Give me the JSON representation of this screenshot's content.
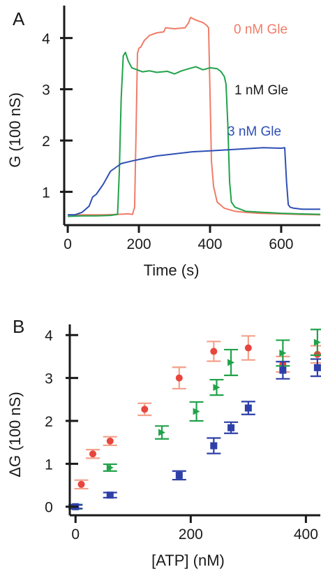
{
  "chart_data": [
    {
      "panel": "A",
      "type": "line",
      "xlabel": "Time (s)",
      "ylabel": "G (100 nS)",
      "xlim": [
        -10,
        710
      ],
      "ylim": [
        0.35,
        4.55
      ],
      "x_ticks": [
        "0",
        "200",
        "400",
        "600"
      ],
      "y_ticks": [
        "1",
        "2",
        "3",
        "4"
      ],
      "series": [
        {
          "name": "0 nM Gle",
          "color": "#f07c68",
          "x": [
            0,
            60,
            100,
            140,
            170,
            182,
            188,
            192,
            196,
            200,
            205,
            215,
            230,
            250,
            270,
            275,
            300,
            330,
            340,
            345,
            360,
            380,
            390,
            396,
            400,
            404,
            410,
            420,
            440,
            470,
            500,
            540,
            600,
            650,
            710
          ],
          "y": [
            0.55,
            0.55,
            0.55,
            0.56,
            0.57,
            0.56,
            0.7,
            2.2,
            3.7,
            3.8,
            3.82,
            3.95,
            4.05,
            4.1,
            4.12,
            4.2,
            4.18,
            4.2,
            4.3,
            4.4,
            4.35,
            4.3,
            4.25,
            4.2,
            2.9,
            1.6,
            1.1,
            0.8,
            0.68,
            0.62,
            0.6,
            0.58,
            0.57,
            0.56,
            0.55
          ]
        },
        {
          "name": "1 nM Gle",
          "color": "#21a24a",
          "x": [
            0,
            40,
            80,
            120,
            140,
            145,
            150,
            156,
            162,
            170,
            180,
            195,
            210,
            230,
            250,
            280,
            300,
            320,
            340,
            360,
            380,
            400,
            420,
            430,
            440,
            445,
            450,
            455,
            460,
            470,
            500,
            550,
            600,
            650,
            710
          ],
          "y": [
            0.52,
            0.53,
            0.53,
            0.54,
            0.56,
            1.4,
            2.8,
            3.65,
            3.72,
            3.55,
            3.42,
            3.38,
            3.34,
            3.36,
            3.33,
            3.35,
            3.3,
            3.36,
            3.4,
            3.44,
            3.38,
            3.42,
            3.4,
            3.35,
            3.25,
            3.1,
            2.3,
            1.2,
            0.8,
            0.7,
            0.62,
            0.6,
            0.58,
            0.57,
            0.56
          ]
        },
        {
          "name": "3 nM Gle",
          "color": "#2e4fb5",
          "x": [
            0,
            20,
            40,
            60,
            70,
            80,
            100,
            120,
            150,
            180,
            200,
            250,
            300,
            350,
            400,
            450,
            500,
            550,
            600,
            610,
            615,
            620,
            625,
            635,
            660,
            710
          ],
          "y": [
            0.55,
            0.55,
            0.6,
            0.72,
            0.9,
            0.95,
            1.15,
            1.4,
            1.55,
            1.6,
            1.63,
            1.7,
            1.74,
            1.78,
            1.8,
            1.82,
            1.84,
            1.86,
            1.85,
            1.86,
            1.2,
            0.75,
            0.7,
            0.68,
            0.66,
            0.66
          ]
        }
      ]
    },
    {
      "panel": "B",
      "type": "scatter",
      "xlabel": "[ATP] (nM)",
      "ylabel": "ΔG (100 nS)",
      "xlim": [
        -10,
        425
      ],
      "ylim": [
        -0.2,
        4.15
      ],
      "x_ticks": [
        "0",
        "200",
        "400"
      ],
      "y_ticks": [
        "0",
        "1",
        "2",
        "3",
        "4"
      ],
      "series": [
        {
          "name": "0 nM Gle",
          "color": "#e8453c",
          "bar_color": "#f4a08a",
          "marker": "circle",
          "x": [
            0,
            10,
            30,
            60,
            120,
            180,
            240,
            300,
            360,
            420
          ],
          "y": [
            0.0,
            0.52,
            1.23,
            1.53,
            2.27,
            3.0,
            3.62,
            3.7,
            3.32,
            3.55
          ],
          "err": [
            0.05,
            0.1,
            0.1,
            0.1,
            0.14,
            0.25,
            0.23,
            0.28,
            0.18,
            0.2
          ]
        },
        {
          "name": "1 nM Gle",
          "color": "#21a24a",
          "bar_color": "#21a24a",
          "marker": "bowtie",
          "x": [
            0,
            60,
            150,
            210,
            245,
            270,
            360,
            420
          ],
          "y": [
            0.0,
            0.91,
            1.73,
            2.22,
            2.78,
            3.36,
            3.58,
            3.83
          ],
          "err": [
            0.05,
            0.08,
            0.15,
            0.22,
            0.18,
            0.3,
            0.3,
            0.3
          ]
        },
        {
          "name": "3 nM Gle",
          "color": "#2e3fa8",
          "bar_color": "#2e3fa8",
          "marker": "square",
          "x": [
            0,
            60,
            180,
            240,
            270,
            300,
            360,
            420
          ],
          "y": [
            0.0,
            0.27,
            0.73,
            1.42,
            1.84,
            2.3,
            3.18,
            3.24
          ],
          "err": [
            0.04,
            0.06,
            0.1,
            0.18,
            0.13,
            0.15,
            0.2,
            0.2
          ]
        }
      ]
    }
  ],
  "colors": {
    "axis": "#1a1a1a",
    "label_0nM": "#f07c68",
    "label_1nM": "#1a1a1a",
    "label_3nM": "#2e4fb5"
  }
}
